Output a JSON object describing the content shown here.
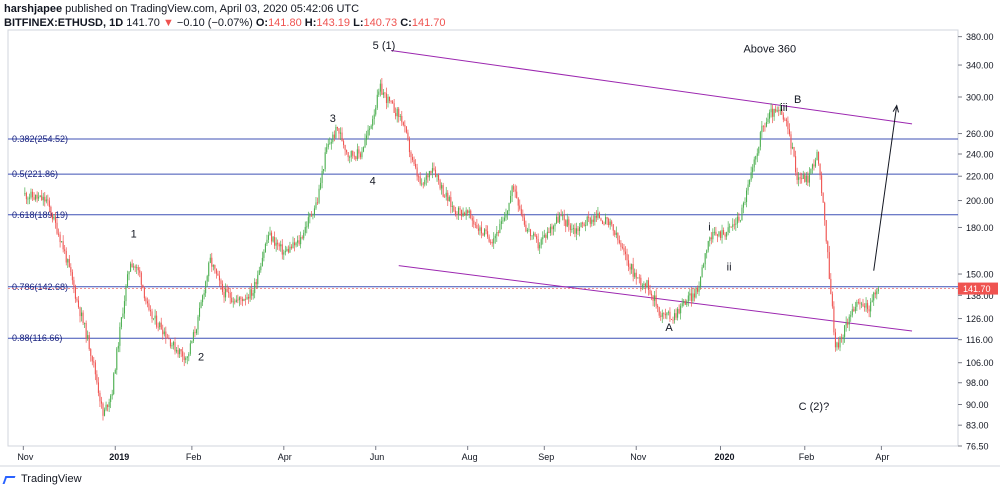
{
  "header": {
    "author": "harshjapee",
    "published": "published on TradingView.com, April 03, 2020 05:42:06 UTC",
    "symbol": "BITFINEX:ETHUSD, 1D",
    "last": "141.70",
    "change_arrow": "▼",
    "change": "−0.10 (−0.07%)",
    "o_label": "O:",
    "o": "141.80",
    "h_label": "H:",
    "h": "143.19",
    "l_label": "L:",
    "l": "140.73",
    "c_label": "C:",
    "c": "141.70"
  },
  "footer": {
    "brand": "TradingView"
  },
  "colors": {
    "up": "#4caf50",
    "down": "#ef5350",
    "fib_line": "#3f51b5",
    "channel": "#9c27b0",
    "price_badge": "#ef5350"
  },
  "chart_data": {
    "type": "candlestick",
    "y_scale": "log",
    "ylim": [
      76.5,
      390
    ],
    "y_ticks": [
      380,
      340,
      300,
      260,
      240,
      220,
      200,
      180,
      150,
      141.7,
      138,
      126,
      116,
      106,
      98,
      90,
      83,
      76.5
    ],
    "y_tick_labels": [
      "380.00",
      "340.00",
      "300.00",
      "260.00",
      "240.00",
      "220.00",
      "200.00",
      "180.00",
      "150.00",
      "",
      "138.00",
      "126.00",
      "116.00",
      "106.00",
      "98.00",
      "90.00",
      "83.00",
      "76.50"
    ],
    "x_labels": [
      "Nov",
      "2019",
      "Feb",
      "Apr",
      "Jun",
      "Aug",
      "Sep",
      "Nov",
      "2020",
      "Feb",
      "Apr"
    ],
    "x_label_days": [
      0,
      60,
      110,
      170,
      230,
      290,
      340,
      400,
      455,
      510,
      560
    ],
    "last_price": "141.70",
    "fib_levels": [
      {
        "label": "0.382(254.52)",
        "value": 254.52
      },
      {
        "label": "0.5(221.86)",
        "value": 221.86
      },
      {
        "label": "0.618(189.19)",
        "value": 189.19
      },
      {
        "label": "0.786(142.68)",
        "value": 142.68
      },
      {
        "label": "0.88(116.66)",
        "value": 116.66
      }
    ],
    "channel_lines": [
      {
        "from": {
          "day": 240,
          "price": 360
        },
        "to": {
          "day": 580,
          "price": 270
        }
      },
      {
        "from": {
          "day": 245,
          "price": 155
        },
        "to": {
          "day": 580,
          "price": 120
        }
      }
    ],
    "projection_arrow": {
      "from": {
        "day": 555,
        "price": 152
      },
      "to": {
        "day": 570,
        "price": 290
      }
    },
    "annotations": [
      {
        "text": "5 (1)",
        "day": 228,
        "price": 362
      },
      {
        "text": "Above 360",
        "day": 470,
        "price": 357
      },
      {
        "text": "B",
        "day": 503,
        "price": 293
      },
      {
        "text": "iii",
        "day": 494,
        "price": 284
      },
      {
        "text": "3",
        "day": 200,
        "price": 272
      },
      {
        "text": "4",
        "day": 226,
        "price": 213
      },
      {
        "text": "1",
        "day": 70,
        "price": 173
      },
      {
        "text": "i",
        "day": 447,
        "price": 178
      },
      {
        "text": "ii",
        "day": 459,
        "price": 152
      },
      {
        "text": "2",
        "day": 114,
        "price": 107
      },
      {
        "text": "A",
        "day": 419,
        "price": 120
      },
      {
        "text": "C (2)?",
        "day": 506,
        "price": 88
      }
    ],
    "close_path": [
      [
        0,
        205
      ],
      [
        15,
        200
      ],
      [
        25,
        170
      ],
      [
        35,
        135
      ],
      [
        45,
        108
      ],
      [
        52,
        86
      ],
      [
        58,
        95
      ],
      [
        63,
        120
      ],
      [
        70,
        158
      ],
      [
        76,
        150
      ],
      [
        82,
        128
      ],
      [
        90,
        122
      ],
      [
        98,
        113
      ],
      [
        107,
        108
      ],
      [
        114,
        125
      ],
      [
        122,
        158
      ],
      [
        130,
        140
      ],
      [
        140,
        135
      ],
      [
        150,
        140
      ],
      [
        160,
        175
      ],
      [
        170,
        163
      ],
      [
        180,
        170
      ],
      [
        192,
        200
      ],
      [
        198,
        245
      ],
      [
        205,
        265
      ],
      [
        212,
        240
      ],
      [
        220,
        240
      ],
      [
        226,
        265
      ],
      [
        233,
        310
      ],
      [
        240,
        290
      ],
      [
        247,
        275
      ],
      [
        254,
        232
      ],
      [
        260,
        210
      ],
      [
        267,
        230
      ],
      [
        274,
        207
      ],
      [
        281,
        193
      ],
      [
        290,
        190
      ],
      [
        298,
        178
      ],
      [
        306,
        172
      ],
      [
        314,
        185
      ],
      [
        320,
        212
      ],
      [
        328,
        180
      ],
      [
        336,
        168
      ],
      [
        343,
        178
      ],
      [
        350,
        188
      ],
      [
        360,
        178
      ],
      [
        368,
        185
      ],
      [
        376,
        188
      ],
      [
        384,
        180
      ],
      [
        393,
        160
      ],
      [
        400,
        148
      ],
      [
        408,
        143
      ],
      [
        416,
        128
      ],
      [
        424,
        127
      ],
      [
        432,
        135
      ],
      [
        440,
        140
      ],
      [
        447,
        172
      ],
      [
        453,
        175
      ],
      [
        460,
        178
      ],
      [
        468,
        188
      ],
      [
        476,
        225
      ],
      [
        482,
        264
      ],
      [
        488,
        282
      ],
      [
        494,
        282
      ],
      [
        499,
        265
      ],
      [
        505,
        220
      ],
      [
        512,
        218
      ],
      [
        518,
        240
      ],
      [
        522,
        195
      ],
      [
        526,
        150
      ],
      [
        530,
        112
      ],
      [
        535,
        118
      ],
      [
        540,
        130
      ],
      [
        546,
        133
      ],
      [
        552,
        132
      ],
      [
        558,
        141.7
      ]
    ]
  }
}
